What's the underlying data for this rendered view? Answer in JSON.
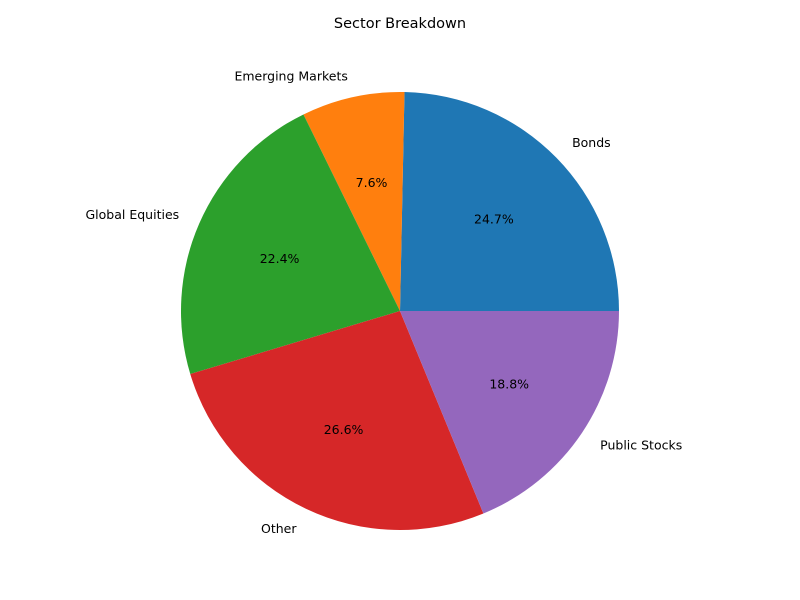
{
  "chart_data": {
    "type": "pie",
    "title": "Sector Breakdown",
    "slices": [
      {
        "label": "Bonds",
        "value": 24.7,
        "pct_label": "24.7%",
        "color": "#1f77b4"
      },
      {
        "label": "Emerging Markets",
        "value": 7.6,
        "pct_label": "7.6%",
        "color": "#ff7f0e"
      },
      {
        "label": "Global Equities",
        "value": 22.4,
        "pct_label": "22.4%",
        "color": "#2ca02c"
      },
      {
        "label": "Other",
        "value": 26.6,
        "pct_label": "26.6%",
        "color": "#d62728"
      },
      {
        "label": "Public Stocks",
        "value": 18.8,
        "pct_label": "18.8%",
        "color": "#9467bd"
      }
    ],
    "start_angle_deg": 0,
    "direction": "counterclockwise",
    "legend": "none"
  }
}
